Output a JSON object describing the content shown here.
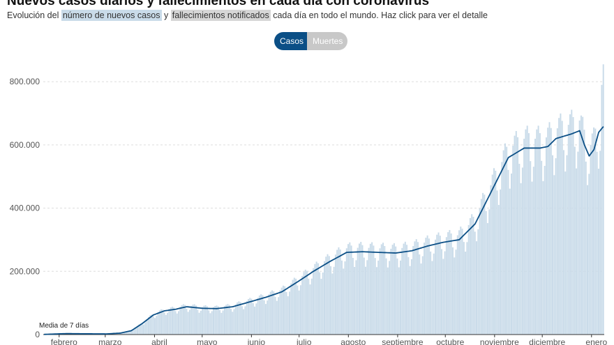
{
  "header": {
    "title": "Nuevos casos diarios y fallecimientos en cada día con coronavirus",
    "subtitle_pre": "Evolución del",
    "subtitle_cases": "número de nuevos casos",
    "subtitle_mid": "y",
    "subtitle_deaths": "fallecimientos notificados",
    "subtitle_post": "cada día en todo el mundo. Haz click para ver el detalle"
  },
  "toggle": {
    "cases_label": "Casos",
    "deaths_label": "Muertes",
    "selected": "Casos"
  },
  "colors": {
    "bars": "#c9dbe9",
    "line": "#0b4f86",
    "grid": "#dddddd",
    "axis_text": "#555555"
  },
  "chart_data": {
    "type": "bar",
    "series": [
      {
        "name": "número de nuevos casos",
        "mark": "bar"
      },
      {
        "name": "Media de 7 días",
        "mark": "line"
      }
    ],
    "annotation": "Media de 7 días",
    "x_tick_labels": [
      "febrero",
      "marzo",
      "abril",
      "mayo",
      "junio",
      "julio",
      "agosto",
      "septiembre",
      "octubre",
      "noviembre",
      "diciembre",
      "enero"
    ],
    "x_range": [
      "2020-01-22",
      "2021-01-09"
    ],
    "y_tick_labels": [
      "0",
      "200.000",
      "400.000",
      "600.000",
      "800.000"
    ],
    "y_ticks": [
      0,
      200000,
      400000,
      600000,
      800000
    ],
    "ylim": [
      0,
      860000
    ],
    "grid": true,
    "avg_7day": [
      {
        "date": "2020-01-22",
        "value": 500
      },
      {
        "date": "2020-02-05",
        "value": 3000
      },
      {
        "date": "2020-02-15",
        "value": 2500
      },
      {
        "date": "2020-03-01",
        "value": 2000
      },
      {
        "date": "2020-03-10",
        "value": 4500
      },
      {
        "date": "2020-03-17",
        "value": 12000
      },
      {
        "date": "2020-03-24",
        "value": 35000
      },
      {
        "date": "2020-03-31",
        "value": 62000
      },
      {
        "date": "2020-04-07",
        "value": 75000
      },
      {
        "date": "2020-04-14",
        "value": 80000
      },
      {
        "date": "2020-04-21",
        "value": 88000
      },
      {
        "date": "2020-05-01",
        "value": 83000
      },
      {
        "date": "2020-05-10",
        "value": 82000
      },
      {
        "date": "2020-05-20",
        "value": 88000
      },
      {
        "date": "2020-06-01",
        "value": 105000
      },
      {
        "date": "2020-06-10",
        "value": 118000
      },
      {
        "date": "2020-06-20",
        "value": 135000
      },
      {
        "date": "2020-07-01",
        "value": 170000
      },
      {
        "date": "2020-07-10",
        "value": 200000
      },
      {
        "date": "2020-07-20",
        "value": 230000
      },
      {
        "date": "2020-07-31",
        "value": 260000
      },
      {
        "date": "2020-08-10",
        "value": 262000
      },
      {
        "date": "2020-08-20",
        "value": 260000
      },
      {
        "date": "2020-08-31",
        "value": 258000
      },
      {
        "date": "2020-09-10",
        "value": 265000
      },
      {
        "date": "2020-09-20",
        "value": 280000
      },
      {
        "date": "2020-09-30",
        "value": 292000
      },
      {
        "date": "2020-10-10",
        "value": 300000
      },
      {
        "date": "2020-10-20",
        "value": 350000
      },
      {
        "date": "2020-10-31",
        "value": 460000
      },
      {
        "date": "2020-11-10",
        "value": 560000
      },
      {
        "date": "2020-11-20",
        "value": 590000
      },
      {
        "date": "2020-11-30",
        "value": 590000
      },
      {
        "date": "2020-12-05",
        "value": 595000
      },
      {
        "date": "2020-12-10",
        "value": 620000
      },
      {
        "date": "2020-12-20",
        "value": 635000
      },
      {
        "date": "2020-12-25",
        "value": 645000
      },
      {
        "date": "2020-12-28",
        "value": 600000
      },
      {
        "date": "2020-12-31",
        "value": 565000
      },
      {
        "date": "2021-01-03",
        "value": 585000
      },
      {
        "date": "2021-01-06",
        "value": 640000
      },
      {
        "date": "2021-01-09",
        "value": 658000
      }
    ],
    "daily_peaks": [
      {
        "date": "2021-01-09",
        "value": 855000
      },
      {
        "date": "2021-01-08",
        "value": 790000
      }
    ]
  }
}
